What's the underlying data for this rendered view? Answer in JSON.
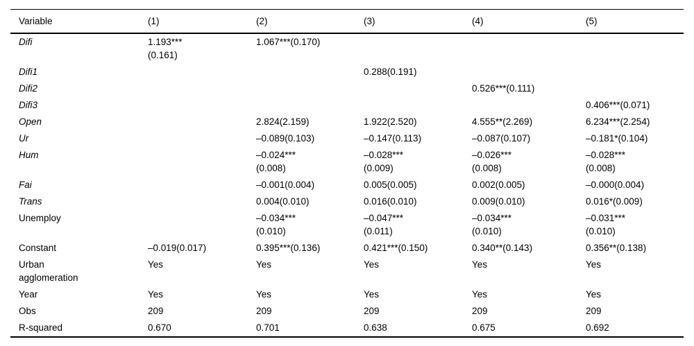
{
  "table": {
    "title": "regression-results-table",
    "columns": [
      "Variable",
      "(1)",
      "(2)",
      "(3)",
      "(4)",
      "(5)"
    ],
    "rows": [
      {
        "label": "Difi",
        "italic": true,
        "cells": [
          "1.193***\n(0.161)",
          "1.067***(0.170)",
          "",
          "",
          ""
        ]
      },
      {
        "label": "Difi1",
        "italic": true,
        "cells": [
          "",
          "",
          "0.288(0.191)",
          "",
          ""
        ]
      },
      {
        "label": "Difi2",
        "italic": true,
        "cells": [
          "",
          "",
          "",
          "0.526***(0.111)",
          ""
        ]
      },
      {
        "label": "Difi3",
        "italic": true,
        "cells": [
          "",
          "",
          "",
          "",
          "0.406***(0.071)"
        ]
      },
      {
        "label": "Open",
        "italic": true,
        "cells": [
          "",
          "2.824(2.159)",
          "1.922(2.520)",
          "4.555**(2.269)",
          "6.234***(2.254)"
        ]
      },
      {
        "label": "Ur",
        "italic": true,
        "cells": [
          "",
          "–0.089(0.103)",
          "–0.147(0.113)",
          "–0.087(0.107)",
          "–0.181*(0.104)"
        ]
      },
      {
        "label": "Hum",
        "italic": true,
        "cells": [
          "",
          "–0.024***\n(0.008)",
          "–0.028***\n(0.009)",
          "–0.026***\n(0.008)",
          "–0.028***\n(0.008)"
        ]
      },
      {
        "label": "Fai",
        "italic": true,
        "cells": [
          "",
          "–0.001(0.004)",
          "0.005(0.005)",
          "0.002(0.005)",
          "–0.000(0.004)"
        ]
      },
      {
        "label": "Trans",
        "italic": true,
        "cells": [
          "",
          "0.004(0.010)",
          "0.016(0.010)",
          "0.009(0.010)",
          "0.016*(0.009)"
        ]
      },
      {
        "label": "Unemploy",
        "italic": false,
        "cells": [
          "",
          "–0.034***\n(0.010)",
          "–0.047***\n(0.011)",
          "–0.034***\n(0.010)",
          "–0.031***\n(0.010)"
        ]
      },
      {
        "label": "Constant",
        "italic": false,
        "cells": [
          "–0.019(0.017)",
          "0.395***(0.136)",
          "0.421***(0.150)",
          "0.340**(0.143)",
          "0.356**(0.138)"
        ]
      },
      {
        "label": "Urban\nagglomeration",
        "italic": false,
        "cells": [
          "Yes",
          "Yes",
          "Yes",
          "Yes",
          "Yes"
        ]
      },
      {
        "label": "Year",
        "italic": false,
        "cells": [
          "Yes",
          "Yes",
          "Yes",
          "Yes",
          "Yes"
        ]
      },
      {
        "label": "Obs",
        "italic": false,
        "cells": [
          "209",
          "209",
          "209",
          "209",
          "209"
        ]
      },
      {
        "label": "R-squared",
        "italic": false,
        "cells": [
          "0.670",
          "0.701",
          "0.638",
          "0.675",
          "0.692"
        ]
      }
    ]
  }
}
